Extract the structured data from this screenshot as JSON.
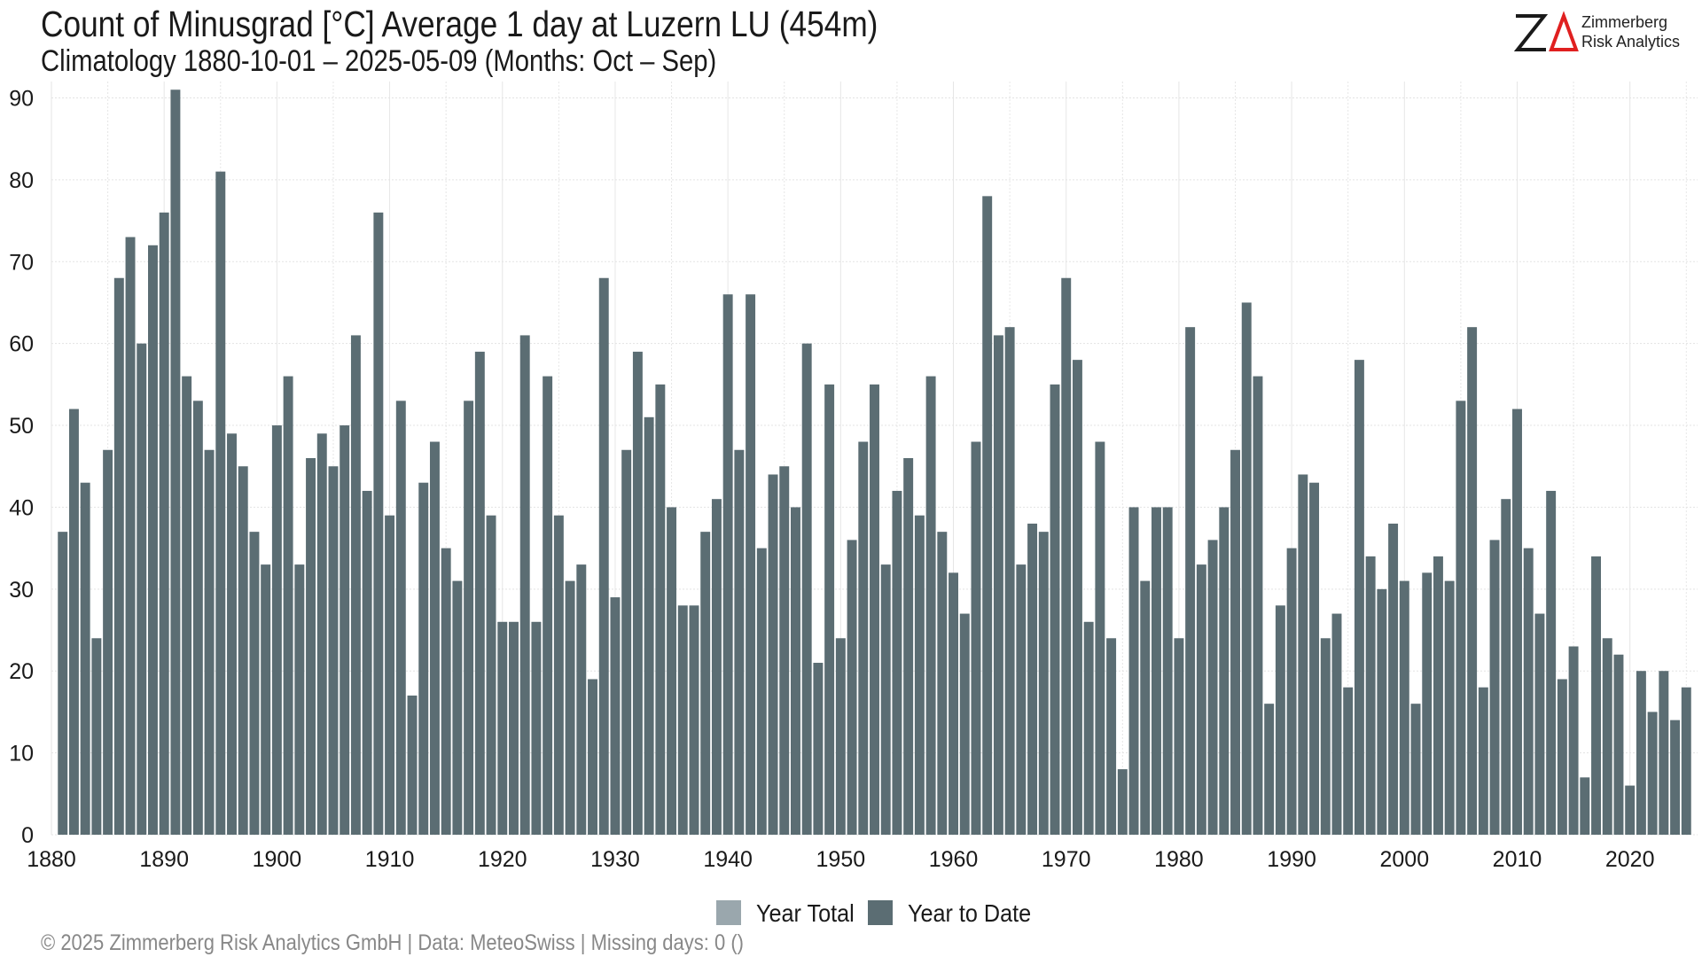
{
  "header": {
    "title": "Count of Minusgrad [°C] Average 1 day at Luzern  LU (454m)",
    "subtitle": "Climatology 1880-10-01 – 2025-05-09 (Months: Oct – Sep)"
  },
  "logo": {
    "mark_icon": "za-logo-icon",
    "line1": "Zimmerberg",
    "line2": "Risk Analytics",
    "color_dark": "#1a1a1a",
    "color_accent": "#e02020"
  },
  "legend": {
    "items": [
      {
        "label": "Year Total",
        "color": "#9aa7ad"
      },
      {
        "label": "Year to Date",
        "color": "#5b6d73"
      }
    ]
  },
  "footer": {
    "text": "©  2025 Zimmerberg Risk Analytics GmbH | Data: MeteoSwiss | Missing days: 0 ()"
  },
  "chart_data": {
    "type": "bar",
    "title": "Count of Minusgrad [°C] Average 1 day at Luzern  LU (454m)",
    "subtitle": "Climatology 1880-10-01 – 2025-05-09 (Months: Oct – Sep)",
    "xlabel": "",
    "ylabel": "",
    "x_start": 1881,
    "xlim": [
      1880,
      2026
    ],
    "ylim": [
      0,
      92
    ],
    "xticks": [
      1880,
      1890,
      1900,
      1910,
      1920,
      1930,
      1940,
      1950,
      1960,
      1970,
      1980,
      1990,
      2000,
      2010,
      2020
    ],
    "yticks": [
      0,
      10,
      20,
      30,
      40,
      50,
      60,
      70,
      80,
      90
    ],
    "grid": true,
    "legend_position": "bottom",
    "bar_color": "#5b6d73",
    "series": [
      {
        "name": "Year to Date",
        "values": [
          37,
          52,
          43,
          24,
          47,
          68,
          73,
          60,
          72,
          76,
          91,
          56,
          53,
          47,
          81,
          49,
          45,
          37,
          33,
          50,
          56,
          33,
          46,
          49,
          45,
          50,
          61,
          42,
          76,
          39,
          53,
          17,
          43,
          48,
          35,
          31,
          53,
          59,
          39,
          26,
          26,
          61,
          26,
          56,
          39,
          31,
          33,
          19,
          68,
          29,
          47,
          59,
          51,
          55,
          40,
          28,
          28,
          37,
          41,
          66,
          47,
          66,
          35,
          44,
          45,
          40,
          60,
          21,
          55,
          24,
          36,
          48,
          55,
          33,
          42,
          46,
          39,
          56,
          37,
          32,
          27,
          48,
          78,
          61,
          62,
          33,
          38,
          37,
          55,
          68,
          58,
          26,
          48,
          24,
          8,
          40,
          31,
          40,
          40,
          24,
          62,
          33,
          36,
          40,
          47,
          65,
          56,
          16,
          28,
          35,
          44,
          43,
          24,
          27,
          18,
          58,
          34,
          30,
          38,
          31,
          16,
          32,
          34,
          31,
          53,
          62,
          18,
          36,
          41,
          52,
          35,
          27,
          42,
          19,
          23,
          7,
          34,
          24,
          22,
          6,
          20,
          15,
          20,
          14,
          18
        ]
      }
    ]
  }
}
